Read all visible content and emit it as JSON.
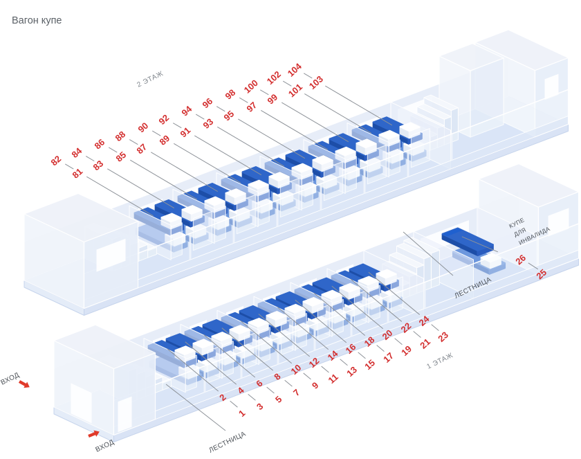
{
  "title": "Вагон купе",
  "floor2": {
    "label": "2 ЭТАЖ",
    "berth_pairs": [
      {
        "upper": "82",
        "lower": "81"
      },
      {
        "upper": "84",
        "lower": "83"
      },
      {
        "upper": "86",
        "lower": "85"
      },
      {
        "upper": "88",
        "lower": "87"
      },
      {
        "upper": "90",
        "lower": "89"
      },
      {
        "upper": "92",
        "lower": "91"
      },
      {
        "upper": "94",
        "lower": "93"
      },
      {
        "upper": "96",
        "lower": "95"
      },
      {
        "upper": "98",
        "lower": "97"
      },
      {
        "upper": "100",
        "lower": "99"
      },
      {
        "upper": "102",
        "lower": "101"
      },
      {
        "upper": "104",
        "lower": "103"
      }
    ]
  },
  "floor1": {
    "label": "1 ЭТАЖ",
    "berth_pairs": [
      {
        "upper": "2",
        "lower": "1"
      },
      {
        "upper": "4",
        "lower": "3"
      },
      {
        "upper": "6",
        "lower": "5"
      },
      {
        "upper": "8",
        "lower": "7"
      },
      {
        "upper": "10",
        "lower": "9"
      },
      {
        "upper": "12",
        "lower": "11"
      },
      {
        "upper": "14",
        "lower": "13"
      },
      {
        "upper": "16",
        "lower": "15"
      },
      {
        "upper": "18",
        "lower": "17"
      },
      {
        "upper": "20",
        "lower": "19"
      },
      {
        "upper": "22",
        "lower": "21"
      },
      {
        "upper": "24",
        "lower": "23"
      }
    ],
    "disabled_compartment": {
      "label_lines": [
        "КУПЕ",
        "ДЛЯ",
        "ИНВАЛИДА"
      ],
      "upper": "26",
      "lower": "25"
    },
    "entrance_labels": [
      "ВХОД",
      "ВХОД"
    ],
    "stairs_labels": [
      "ЛЕСТНИЦА",
      "ЛЕСТНИЦА"
    ]
  },
  "colors": {
    "berth_number": "#d32f2f",
    "annotation_text": "#4c5157",
    "floor_label_text": "#7e848b",
    "leader_line": "#8d9298",
    "entrance_arrow": "#e03a2a",
    "berth_upper_top": "#2f66c9",
    "berth_upper_side": "#1d4ea8",
    "berth_upper_front": "#2a5cbe",
    "berth_lower_top": "#6c97de",
    "berth_lower_side": "#4a77c6",
    "berth_lower_front": "#5e89d4",
    "pillow": "#ffffff",
    "floor_fill": "#ccdbf4",
    "wall_fill": "#e8eef8"
  }
}
